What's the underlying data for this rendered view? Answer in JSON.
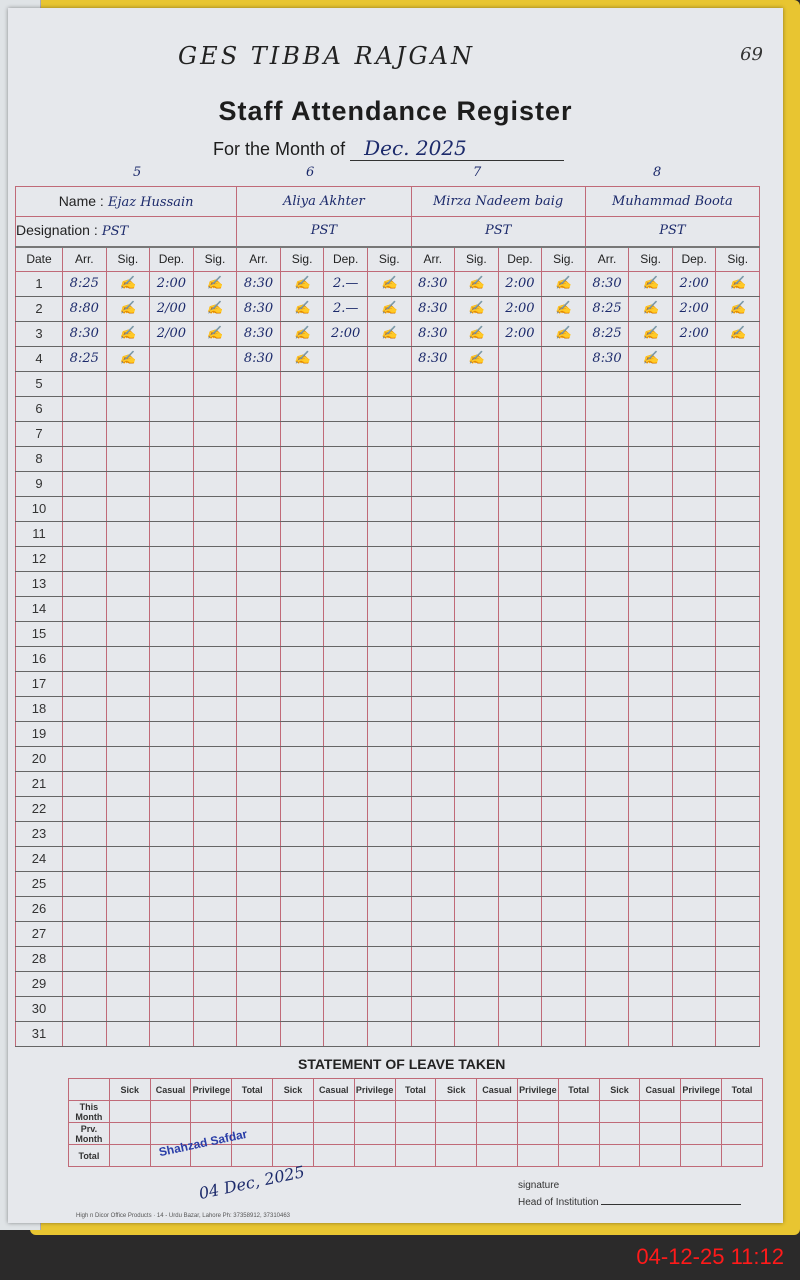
{
  "school": "GES TIBBA RAJGAN",
  "page_number": "69",
  "title": "Staff Attendance Register",
  "month_label": "For the Month of",
  "month_value": "Dec. 2025",
  "labels": {
    "name": "Name :",
    "designation": "Designation :",
    "date": "Date",
    "arr": "Arr.",
    "sig": "Sig.",
    "dep": "Dep."
  },
  "signature_mark": "✍",
  "staff": [
    {
      "serial": "5",
      "name": "Ejaz Hussain",
      "designation": "PST",
      "days": [
        {
          "arr": "8:25",
          "dep": "2:00"
        },
        {
          "arr": "8:80",
          "dep": "2/00"
        },
        {
          "arr": "8:30",
          "dep": "2/00"
        },
        {
          "arr": "8:25",
          "dep": ""
        }
      ]
    },
    {
      "serial": "6",
      "name": "Aliya Akhter",
      "designation": "PST",
      "days": [
        {
          "arr": "8:30",
          "dep": "2.—"
        },
        {
          "arr": "8:30",
          "dep": "2.—"
        },
        {
          "arr": "8:30",
          "dep": "2:00"
        },
        {
          "arr": "8:30",
          "dep": ""
        }
      ]
    },
    {
      "serial": "7",
      "name": "Mirza Nadeem baig",
      "designation": "PST",
      "days": [
        {
          "arr": "8:30",
          "dep": "2:00"
        },
        {
          "arr": "8:30",
          "dep": "2:00"
        },
        {
          "arr": "8:30",
          "dep": "2:00"
        },
        {
          "arr": "8:30",
          "dep": ""
        }
      ]
    },
    {
      "serial": "8",
      "name": "Muhammad Boota",
      "designation": "PST",
      "days": [
        {
          "arr": "8:30",
          "dep": "2:00"
        },
        {
          "arr": "8:25",
          "dep": "2:00"
        },
        {
          "arr": "8:25",
          "dep": "2:00"
        },
        {
          "arr": "8:30",
          "dep": ""
        }
      ]
    }
  ],
  "leave": {
    "title": "STATEMENT OF LEAVE TAKEN",
    "columns": [
      "Sick",
      "Casual",
      "Privilege",
      "Total"
    ],
    "rows": [
      "This Month",
      "Prv. Month",
      "Total"
    ]
  },
  "stamp": {
    "text": "Shahzad Safdar",
    "date": "04 Dec, 2025"
  },
  "signature_label": "signature",
  "head_label": "Head of Institution",
  "printer": "High n Dicor Office Products · 14 - Urdu Bazar, Lahore Ph: 37358912, 37310463",
  "camera_timestamp": "04-12-25  11:12"
}
